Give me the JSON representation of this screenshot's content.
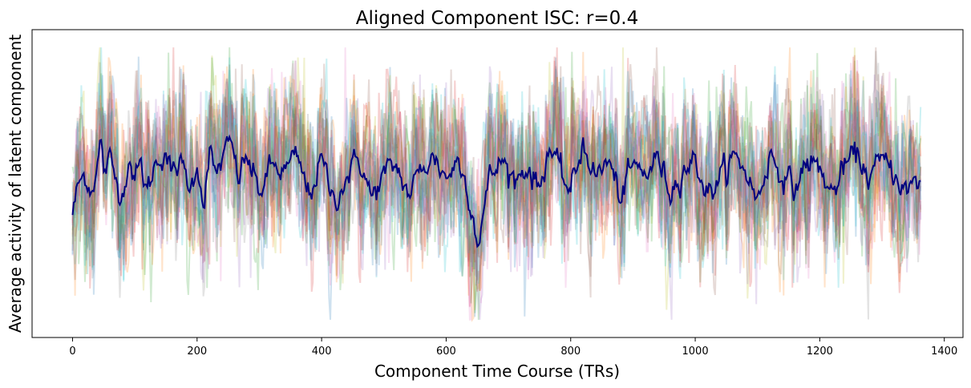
{
  "chart_data": {
    "type": "line",
    "title": "Aligned Component ISC: r=0.4",
    "xlabel": "Component Time Course (TRs)",
    "ylabel": "Average activity of latent component",
    "xlim": [
      -65,
      1430
    ],
    "ylim": [
      -5.2,
      5.2
    ],
    "xticks": [
      0,
      200,
      400,
      600,
      800,
      1000,
      1200,
      1400
    ],
    "yticks": [],
    "grid": false,
    "legend": "none",
    "n_timepoints": 1363,
    "subject_colors": [
      "#1f77b4",
      "#ff7f0e",
      "#2ca02c",
      "#d62728",
      "#9467bd",
      "#8c564b",
      "#e377c2",
      "#7f7f7f",
      "#bcbd22",
      "#17becf",
      "#1f77b4",
      "#ff7f0e",
      "#2ca02c",
      "#d62728",
      "#9467bd",
      "#8c564b",
      "#e377c2",
      "#17becf"
    ],
    "subject_opacity": 0.22,
    "mean_color": "#00007f",
    "mean_x": [
      0,
      10,
      20,
      30,
      40,
      45,
      50,
      60,
      70,
      80,
      90,
      100,
      110,
      120,
      130,
      140,
      150,
      160,
      170,
      180,
      190,
      200,
      210,
      220,
      230,
      240,
      255,
      265,
      280,
      300,
      320,
      340,
      360,
      380,
      400,
      420,
      440,
      460,
      480,
      500,
      520,
      540,
      560,
      580,
      600,
      620,
      640,
      650,
      655,
      670,
      690,
      710,
      730,
      750,
      765,
      780,
      800,
      820,
      840,
      860,
      880,
      900,
      920,
      940,
      960,
      980,
      1000,
      1020,
      1040,
      1060,
      1080,
      1100,
      1120,
      1140,
      1160,
      1180,
      1200,
      1220,
      1240,
      1260,
      1280,
      1300,
      1320,
      1340,
      1360
    ],
    "mean_y": [
      -1.0,
      0.0,
      0.3,
      -0.2,
      0.6,
      1.5,
      0.4,
      0.8,
      0.1,
      -0.4,
      0.9,
      0.2,
      0.6,
      -0.3,
      0.5,
      0.9,
      1.1,
      0.2,
      0.7,
      0.4,
      -0.2,
      0.8,
      -0.7,
      1.0,
      0.3,
      0.8,
      1.4,
      0.2,
      0.9,
      -0.3,
      0.6,
      0.4,
      0.9,
      -0.4,
      0.8,
      -0.6,
      0.2,
      0.9,
      -0.5,
      0.3,
      0.6,
      -0.4,
      0.5,
      0.9,
      0.2,
      0.8,
      -0.6,
      -2.0,
      -1.5,
      0.2,
      0.8,
      0.1,
      0.6,
      -0.2,
      1.3,
      0.5,
      -0.3,
      1.4,
      0.2,
      0.8,
      -0.5,
      0.6,
      0.3,
      0.9,
      -0.3,
      0.5,
      0.8,
      -0.4,
      0.2,
      0.9,
      0.5,
      -0.6,
      1.0,
      0.3,
      -0.2,
      0.8,
      0.5,
      -0.4,
      0.6,
      1.0,
      0.2,
      0.8,
      0.4,
      -0.3,
      0.1
    ],
    "spread": "subjects fluctuate roughly between -4 and +4 around the mean"
  }
}
